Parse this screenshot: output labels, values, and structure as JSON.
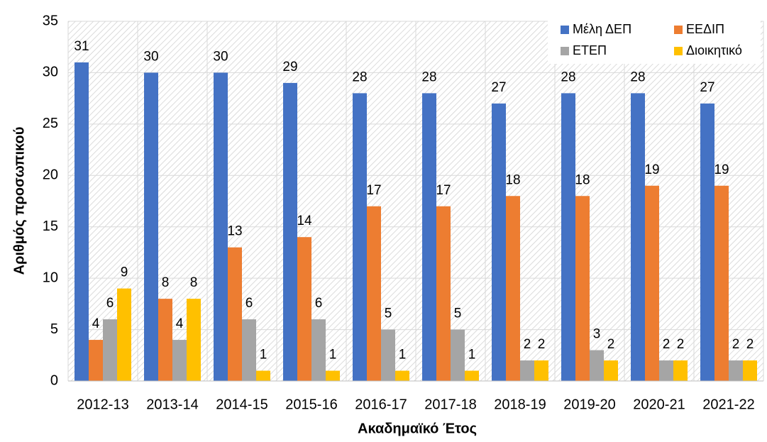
{
  "chart_data": {
    "type": "bar",
    "x_label": "Ακαδημαϊκό Έτος",
    "y_label": "Αριθμός προσωπικού",
    "categories": [
      "2012-13",
      "2013-14",
      "2014-15",
      "2015-16",
      "2016-17",
      "2017-18",
      "2018-19",
      "2019-20",
      "2020-21",
      "2021-22"
    ],
    "series": [
      {
        "name": "Μέλη ΔΕΠ",
        "color": "#4472c4",
        "values": [
          31,
          30,
          30,
          29,
          28,
          28,
          27,
          28,
          28,
          27
        ]
      },
      {
        "name": "ΕΕΔΙΠ",
        "color": "#ed7d31",
        "values": [
          4,
          8,
          13,
          14,
          17,
          17,
          18,
          18,
          19,
          19
        ]
      },
      {
        "name": "ΕΤΕΠ",
        "color": "#a5a5a5",
        "values": [
          6,
          4,
          6,
          6,
          5,
          5,
          2,
          3,
          2,
          2
        ]
      },
      {
        "name": "Διοικητικό",
        "color": "#ffc000",
        "values": [
          9,
          8,
          1,
          1,
          1,
          1,
          2,
          2,
          2,
          2
        ]
      }
    ],
    "ylim": [
      0,
      35
    ],
    "yticks": [
      0,
      5,
      10,
      15,
      20,
      25,
      30,
      35
    ],
    "grid": true,
    "legend": "top-right"
  }
}
